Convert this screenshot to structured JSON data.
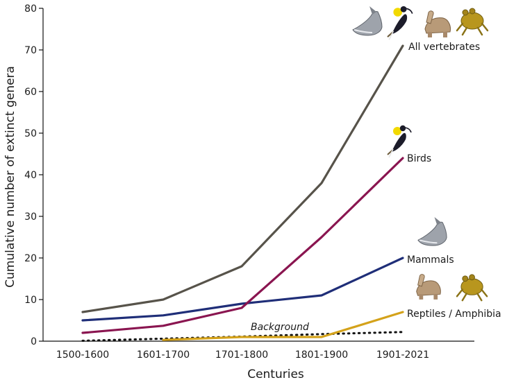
{
  "chart_data": {
    "type": "line",
    "categories": [
      "1500-1600",
      "1601-1700",
      "1701-1800",
      "1801-1900",
      "1901-2021"
    ],
    "xlabel": "Centuries",
    "ylabel": "Cumulative number of extinct genera",
    "ylim": [
      0,
      80
    ],
    "yticks": [
      "0",
      "10",
      "20",
      "30",
      "40",
      "50",
      "60",
      "70",
      "80"
    ],
    "grid": false,
    "series": [
      {
        "name": "All vertebrates",
        "color": "#57534a",
        "values": [
          7,
          10,
          18,
          38,
          71
        ]
      },
      {
        "name": "Birds",
        "color": "#8a1550",
        "values": [
          2,
          3.7,
          8,
          25,
          44
        ]
      },
      {
        "name": "Mammals",
        "color": "#1f2e78",
        "values": [
          5,
          6.2,
          9,
          11,
          20
        ]
      },
      {
        "name": "Reptiles / Amphibia",
        "color": "#d4a21a",
        "values": [
          null,
          0.3,
          1,
          1,
          7
        ]
      }
    ],
    "background": {
      "name": "Background",
      "style": "dotted",
      "color": "#111111",
      "values": [
        0.1,
        0.6,
        1.1,
        1.7,
        2.2
      ]
    }
  },
  "icons": {
    "all_vertebrates": [
      "dolphin-icon",
      "bird-icon",
      "tortoise-icon",
      "frog-icon"
    ],
    "birds": [
      "bird-icon"
    ],
    "mammals": [
      "dolphin-icon"
    ],
    "reptiles": [
      "tortoise-icon",
      "frog-icon"
    ]
  }
}
